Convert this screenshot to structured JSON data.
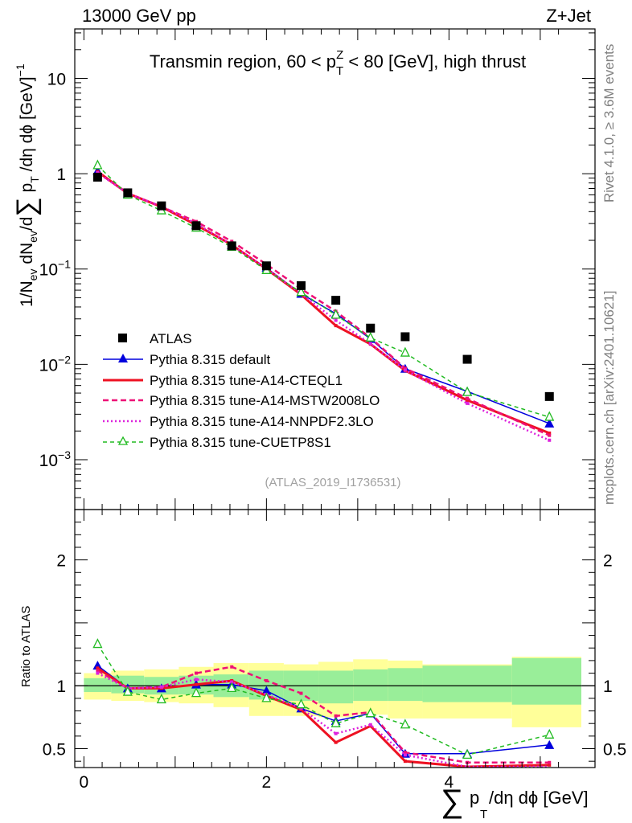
{
  "header": {
    "energy_label": "13000 GeV pp",
    "process_label": "Z+Jet"
  },
  "side_labels": {
    "rivet": "Rivet 4.1.0, ≥ 3.6M events",
    "mcplots": "mcplots.cern.ch [arXiv:2401.10621]"
  },
  "watermark": "(ATLAS_2019_I1736531)",
  "colors": {
    "atlas": "#000000",
    "default": "#0000dd",
    "cteql1": "#ee1122",
    "mstw": "#ee1177",
    "nnpdf": "#dd22dd",
    "cuetp8s1": "#22bb22",
    "band_inner": "#99ee99",
    "band_outer": "#ffff99"
  },
  "chart_data": [
    {
      "type": "line",
      "title": "Transmin region, 60 < p_T^Z < 80 [GeV], high thrust",
      "title_parts": {
        "pre": "Transmin region, 60 < p",
        "sub": "T",
        "sup": "Z",
        "post": " < 80 [GeV], high thrust"
      },
      "ylabel": "1/N_ev dN_ev/d∑ p_T /dη dϕ [GeV]^-1",
      "yscale": "log",
      "ylim": [
        0.0003,
        33
      ],
      "xlim": [
        -0.1,
        5.6
      ],
      "y_ticks": [
        {
          "value": 10,
          "label": "10"
        },
        {
          "value": 1,
          "label": "1"
        },
        {
          "value": 0.1,
          "label": "10",
          "exp": "−1"
        },
        {
          "value": 0.01,
          "label": "10",
          "exp": "−2"
        },
        {
          "value": 0.001,
          "label": "10",
          "exp": "−3"
        }
      ],
      "x": [
        0.15,
        0.48,
        0.85,
        1.23,
        1.62,
        2.0,
        2.38,
        2.76,
        3.14,
        3.52,
        4.2,
        5.1
      ],
      "atlas": [
        0.92,
        0.63,
        0.46,
        0.285,
        0.175,
        0.108,
        0.067,
        0.047,
        0.024,
        0.0195,
        0.0113,
        0.0046
      ],
      "legend": [
        "ATLAS",
        "Pythia 8.315 default",
        "Pythia 8.315 tune-A14-CTEQL1",
        "Pythia 8.315 tune-A14-MSTW2008LO",
        "Pythia 8.315 tune-A14-NNPDF2.3LO",
        "Pythia 8.315 tune-CUETP8S1"
      ],
      "legend_position": "bottom-left",
      "series": [
        {
          "name": "Pythia 8.315 default",
          "color_key": "default",
          "style": "solid",
          "marker": "filled-triangle",
          "values": [
            1.07,
            0.615,
            0.455,
            0.29,
            0.178,
            0.103,
            0.055,
            0.034,
            0.0185,
            0.009,
            0.0052,
            0.0024
          ]
        },
        {
          "name": "Pythia 8.315 tune-A14-CTEQL1",
          "color_key": "cteql1",
          "style": "solid-thick",
          "marker": "none",
          "values": [
            1.05,
            0.62,
            0.45,
            0.29,
            0.18,
            0.1,
            0.054,
            0.0255,
            0.0163,
            0.0086,
            0.0042,
            0.0019
          ]
        },
        {
          "name": "Pythia 8.315 tune-A14-MSTW2008LO",
          "color_key": "mstw",
          "style": "dashed",
          "marker": "none",
          "values": [
            1.03,
            0.625,
            0.45,
            0.315,
            0.195,
            0.112,
            0.062,
            0.036,
            0.019,
            0.0091,
            0.0044,
            0.0018
          ]
        },
        {
          "name": "Pythia 8.315 tune-A14-NNPDF2.3LO",
          "color_key": "nnpdf",
          "style": "dotted",
          "marker": "none",
          "values": [
            1.02,
            0.62,
            0.455,
            0.3,
            0.18,
            0.101,
            0.055,
            0.029,
            0.0165,
            0.0087,
            0.0039,
            0.0016
          ]
        },
        {
          "name": "Pythia 8.315 tune-CUETP8S1",
          "color_key": "cuetp8s1",
          "style": "dashed",
          "marker": "open-triangle",
          "values": [
            1.22,
            0.6,
            0.41,
            0.27,
            0.17,
            0.097,
            0.057,
            0.033,
            0.019,
            0.0132,
            0.0051,
            0.0028
          ]
        }
      ]
    },
    {
      "type": "line",
      "title": "",
      "xlabel": "∑ p_T /dη dϕ [GeV]",
      "ylabel": "Ratio to ATLAS",
      "ylim": [
        0.35,
        2.4
      ],
      "xlim": [
        -0.1,
        5.6
      ],
      "x_ticks": [
        0,
        2,
        4
      ],
      "y_ticks": [
        0.5,
        1,
        2
      ],
      "reference_line": 1,
      "x": [
        0.15,
        0.48,
        0.85,
        1.23,
        1.62,
        2.0,
        2.38,
        2.76,
        3.14,
        3.52,
        4.2,
        5.1
      ],
      "bins": [
        0.0,
        0.3,
        0.66,
        1.04,
        1.42,
        1.81,
        2.19,
        2.57,
        2.95,
        3.33,
        3.71,
        4.69,
        5.45
      ],
      "band_inner": [
        [
          0.95,
          1.06
        ],
        [
          0.94,
          1.08
        ],
        [
          0.93,
          1.07
        ],
        [
          0.93,
          1.08
        ],
        [
          0.91,
          1.09
        ],
        [
          0.89,
          1.12
        ],
        [
          0.88,
          1.12
        ],
        [
          0.86,
          1.12
        ],
        [
          0.88,
          1.13
        ],
        [
          0.88,
          1.14
        ],
        [
          0.87,
          1.16
        ],
        [
          0.85,
          1.22
        ]
      ],
      "band_outer": [
        [
          0.89,
          1.1
        ],
        [
          0.88,
          1.12
        ],
        [
          0.87,
          1.13
        ],
        [
          0.86,
          1.15
        ],
        [
          0.83,
          1.18
        ],
        [
          0.76,
          1.18
        ],
        [
          0.76,
          1.17
        ],
        [
          0.75,
          1.19
        ],
        [
          0.77,
          1.21
        ],
        [
          0.74,
          1.2
        ],
        [
          0.74,
          1.17
        ],
        [
          0.67,
          1.23
        ]
      ],
      "series": [
        {
          "name": "Pythia 8.315 default",
          "color_key": "default",
          "style": "solid",
          "marker": "filled-triangle",
          "values": [
            1.16,
            0.98,
            0.98,
            1.01,
            1.01,
            0.96,
            0.82,
            0.72,
            0.78,
            0.46,
            0.46,
            0.53
          ]
        },
        {
          "name": "Pythia 8.315 tune-A14-CTEQL1",
          "color_key": "cteql1",
          "style": "solid-thick",
          "marker": "none",
          "values": [
            1.14,
            0.98,
            0.98,
            1.01,
            1.04,
            0.92,
            0.81,
            0.55,
            0.68,
            0.4,
            0.31,
            0.37
          ]
        },
        {
          "name": "Pythia 8.315 tune-A14-MSTW2008LO",
          "color_key": "mstw",
          "style": "dashed",
          "marker": "none",
          "values": [
            1.12,
            0.98,
            0.99,
            1.1,
            1.15,
            1.04,
            0.94,
            0.76,
            0.79,
            0.47,
            0.39,
            0.39
          ]
        },
        {
          "name": "Pythia 8.315 tune-A14-NNPDF2.3LO",
          "color_key": "nnpdf",
          "style": "dotted",
          "marker": "none",
          "values": [
            1.1,
            0.98,
            0.99,
            1.05,
            1.03,
            0.93,
            0.82,
            0.62,
            0.69,
            0.45,
            0.35,
            0.34
          ]
        },
        {
          "name": "Pythia 8.315 tune-CUETP8S1",
          "color_key": "cuetp8s1",
          "style": "dashed",
          "marker": "open-triangle",
          "values": [
            1.33,
            0.95,
            0.89,
            0.94,
            0.98,
            0.9,
            0.85,
            0.7,
            0.78,
            0.69,
            0.45,
            0.61
          ]
        }
      ]
    }
  ]
}
